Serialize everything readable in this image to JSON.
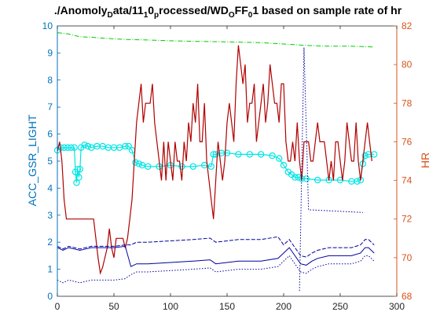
{
  "chart_data": {
    "type": "line",
    "title": "./AnomolyData/1110processed/WDOFF01 based on sample rate of hr",
    "title_runs": [
      {
        "text": "./Anomoly",
        "sub": false
      },
      {
        "text": "D",
        "sub": true
      },
      {
        "text": "ata/11",
        "sub": false
      },
      {
        "text": "1",
        "sub": true
      },
      {
        "text": "0",
        "sub": false
      },
      {
        "text": "p",
        "sub": true
      },
      {
        "text": "rocessed/WD",
        "sub": false
      },
      {
        "text": "O",
        "sub": true
      },
      {
        "text": "FF",
        "sub": false
      },
      {
        "text": "0",
        "sub": true
      },
      {
        "text": "1 based on sample rate of hr",
        "sub": false
      }
    ],
    "xlabel": "",
    "ylabel_left": "ACC_GSR_LIGHT",
    "ylabel_right": "HR",
    "xlim": [
      0,
      300
    ],
    "ylim_left": [
      0,
      10
    ],
    "ylim_right": [
      68,
      82
    ],
    "x_ticks": [
      "0",
      "50",
      "100",
      "150",
      "200",
      "250",
      "300"
    ],
    "y_left_ticks": [
      "0",
      "1",
      "2",
      "3",
      "4",
      "5",
      "6",
      "7",
      "8",
      "9",
      "10"
    ],
    "y_right_ticks": [
      "68",
      "70",
      "72",
      "74",
      "76",
      "78",
      "80",
      "82"
    ],
    "grid": false,
    "colors": {
      "left_axis": "#0072BD",
      "right_axis": "#D95319",
      "gsr": "#00E5E5",
      "light": "#00CC00",
      "hr": "#B00000",
      "acc": "#0000A0"
    },
    "series": [
      {
        "axis": "left",
        "style": "cyan-circle-line",
        "x": [
          0,
          3,
          6,
          9,
          12,
          15,
          16,
          17,
          18,
          19,
          20,
          21,
          24,
          27,
          30,
          35,
          40,
          45,
          50,
          55,
          60,
          63,
          66,
          69,
          72,
          75,
          80,
          90,
          100,
          110,
          120,
          130,
          136,
          138,
          140,
          145,
          150,
          160,
          170,
          180,
          190,
          196,
          200,
          204,
          207,
          210,
          213,
          216,
          220,
          230,
          240,
          250,
          260,
          265,
          268,
          270,
          272,
          275,
          280
        ],
        "y": [
          5.4,
          5.5,
          5.5,
          5.5,
          5.5,
          5.5,
          4.6,
          4.2,
          4.7,
          4.4,
          4.7,
          5.5,
          5.6,
          5.55,
          5.5,
          5.55,
          5.55,
          5.5,
          5.5,
          5.5,
          5.55,
          5.55,
          5.4,
          4.95,
          4.9,
          4.85,
          4.8,
          4.8,
          4.85,
          4.8,
          4.8,
          4.85,
          4.8,
          5.25,
          5.25,
          5.3,
          5.3,
          5.25,
          5.25,
          5.25,
          5.2,
          5.1,
          4.85,
          4.6,
          4.5,
          4.4,
          4.4,
          4.35,
          4.35,
          4.3,
          4.3,
          4.3,
          4.25,
          4.25,
          4.3,
          4.9,
          5.2,
          5.25,
          5.25
        ]
      },
      {
        "axis": "left",
        "style": "green-dash-dot",
        "x": [
          0,
          10,
          20,
          30,
          40,
          60,
          80,
          100,
          120,
          140,
          160,
          180,
          200,
          220,
          240,
          260,
          280
        ],
        "y": [
          9.75,
          9.7,
          9.6,
          9.58,
          9.55,
          9.5,
          9.48,
          9.45,
          9.43,
          9.42,
          9.4,
          9.38,
          9.33,
          9.28,
          9.25,
          9.25,
          9.22
        ]
      },
      {
        "axis": "right",
        "style": "red-line",
        "x": [
          0,
          2,
          4,
          6,
          8,
          10,
          12,
          14,
          16,
          18,
          20,
          22,
          24,
          26,
          28,
          30,
          32,
          34,
          36,
          38,
          40,
          42,
          44,
          46,
          48,
          50,
          52,
          54,
          56,
          58,
          60,
          62,
          64,
          66,
          68,
          70,
          72,
          74,
          76,
          78,
          80,
          82,
          84,
          86,
          88,
          90,
          92,
          94,
          96,
          98,
          100,
          102,
          104,
          106,
          108,
          110,
          112,
          114,
          116,
          118,
          120,
          122,
          124,
          126,
          128,
          130,
          132,
          134,
          136,
          138,
          140,
          142,
          144,
          146,
          148,
          150,
          152,
          154,
          156,
          158,
          160,
          162,
          164,
          166,
          168,
          170,
          172,
          174,
          176,
          178,
          180,
          182,
          184,
          186,
          188,
          190,
          192,
          194,
          196,
          198,
          200,
          202,
          204,
          206,
          208,
          210,
          212,
          214,
          216,
          218,
          220,
          222,
          224,
          226,
          228,
          230,
          232,
          234,
          236,
          238,
          240,
          242,
          244,
          246,
          248,
          250,
          252,
          254,
          256,
          258,
          260,
          262,
          264,
          266,
          268,
          270,
          272,
          274,
          276,
          278
        ],
        "y": [
          75.5,
          76,
          75,
          73,
          72,
          72,
          72,
          72,
          72,
          72,
          72,
          72,
          72,
          72,
          72,
          72,
          72,
          71,
          70,
          69.2,
          69.5,
          70,
          70.5,
          71.5,
          70.5,
          70,
          71,
          71,
          71,
          71,
          70.5,
          71,
          72,
          73,
          75,
          77,
          78,
          79,
          77,
          78,
          78,
          78,
          79,
          77,
          76,
          75,
          74,
          76,
          74,
          76,
          75,
          74,
          76,
          75,
          75,
          74,
          76,
          75,
          77,
          76,
          78,
          77,
          79,
          76,
          76,
          78,
          75,
          74,
          73,
          72,
          74,
          76,
          75,
          74,
          75,
          77,
          78,
          77,
          76,
          79,
          81,
          80,
          79,
          80,
          77,
          78,
          78,
          79,
          76,
          77,
          78,
          79,
          77,
          78,
          80,
          79,
          78,
          78,
          77,
          79,
          79,
          76,
          75,
          75,
          76,
          75,
          77,
          75,
          74,
          76,
          76,
          76,
          75,
          75,
          76,
          77,
          76,
          76,
          76,
          75,
          74,
          75,
          74,
          76,
          76,
          75,
          74,
          75,
          77,
          76,
          75,
          75,
          77,
          75,
          74,
          75,
          76,
          77,
          76,
          75
        ]
      },
      {
        "axis": "left",
        "style": "blue-lines",
        "x": [
          0,
          5,
          10,
          15,
          20,
          25,
          30,
          40,
          50,
          60,
          65,
          70,
          80,
          100,
          120,
          135,
          140,
          150,
          160,
          180,
          195,
          200,
          205,
          210,
          215,
          220,
          225,
          230,
          240,
          260,
          268,
          272,
          275,
          280
        ],
        "y": [
          1.8,
          1.7,
          1.8,
          1.75,
          1.7,
          1.75,
          1.8,
          1.8,
          1.8,
          1.85,
          1.1,
          1.2,
          1.2,
          1.25,
          1.3,
          1.35,
          1.2,
          1.25,
          1.3,
          1.3,
          1.4,
          1.6,
          1.8,
          1.5,
          1.2,
          1.15,
          1.3,
          1.4,
          1.5,
          1.5,
          1.6,
          1.8,
          1.8,
          1.6
        ]
      }
    ]
  }
}
